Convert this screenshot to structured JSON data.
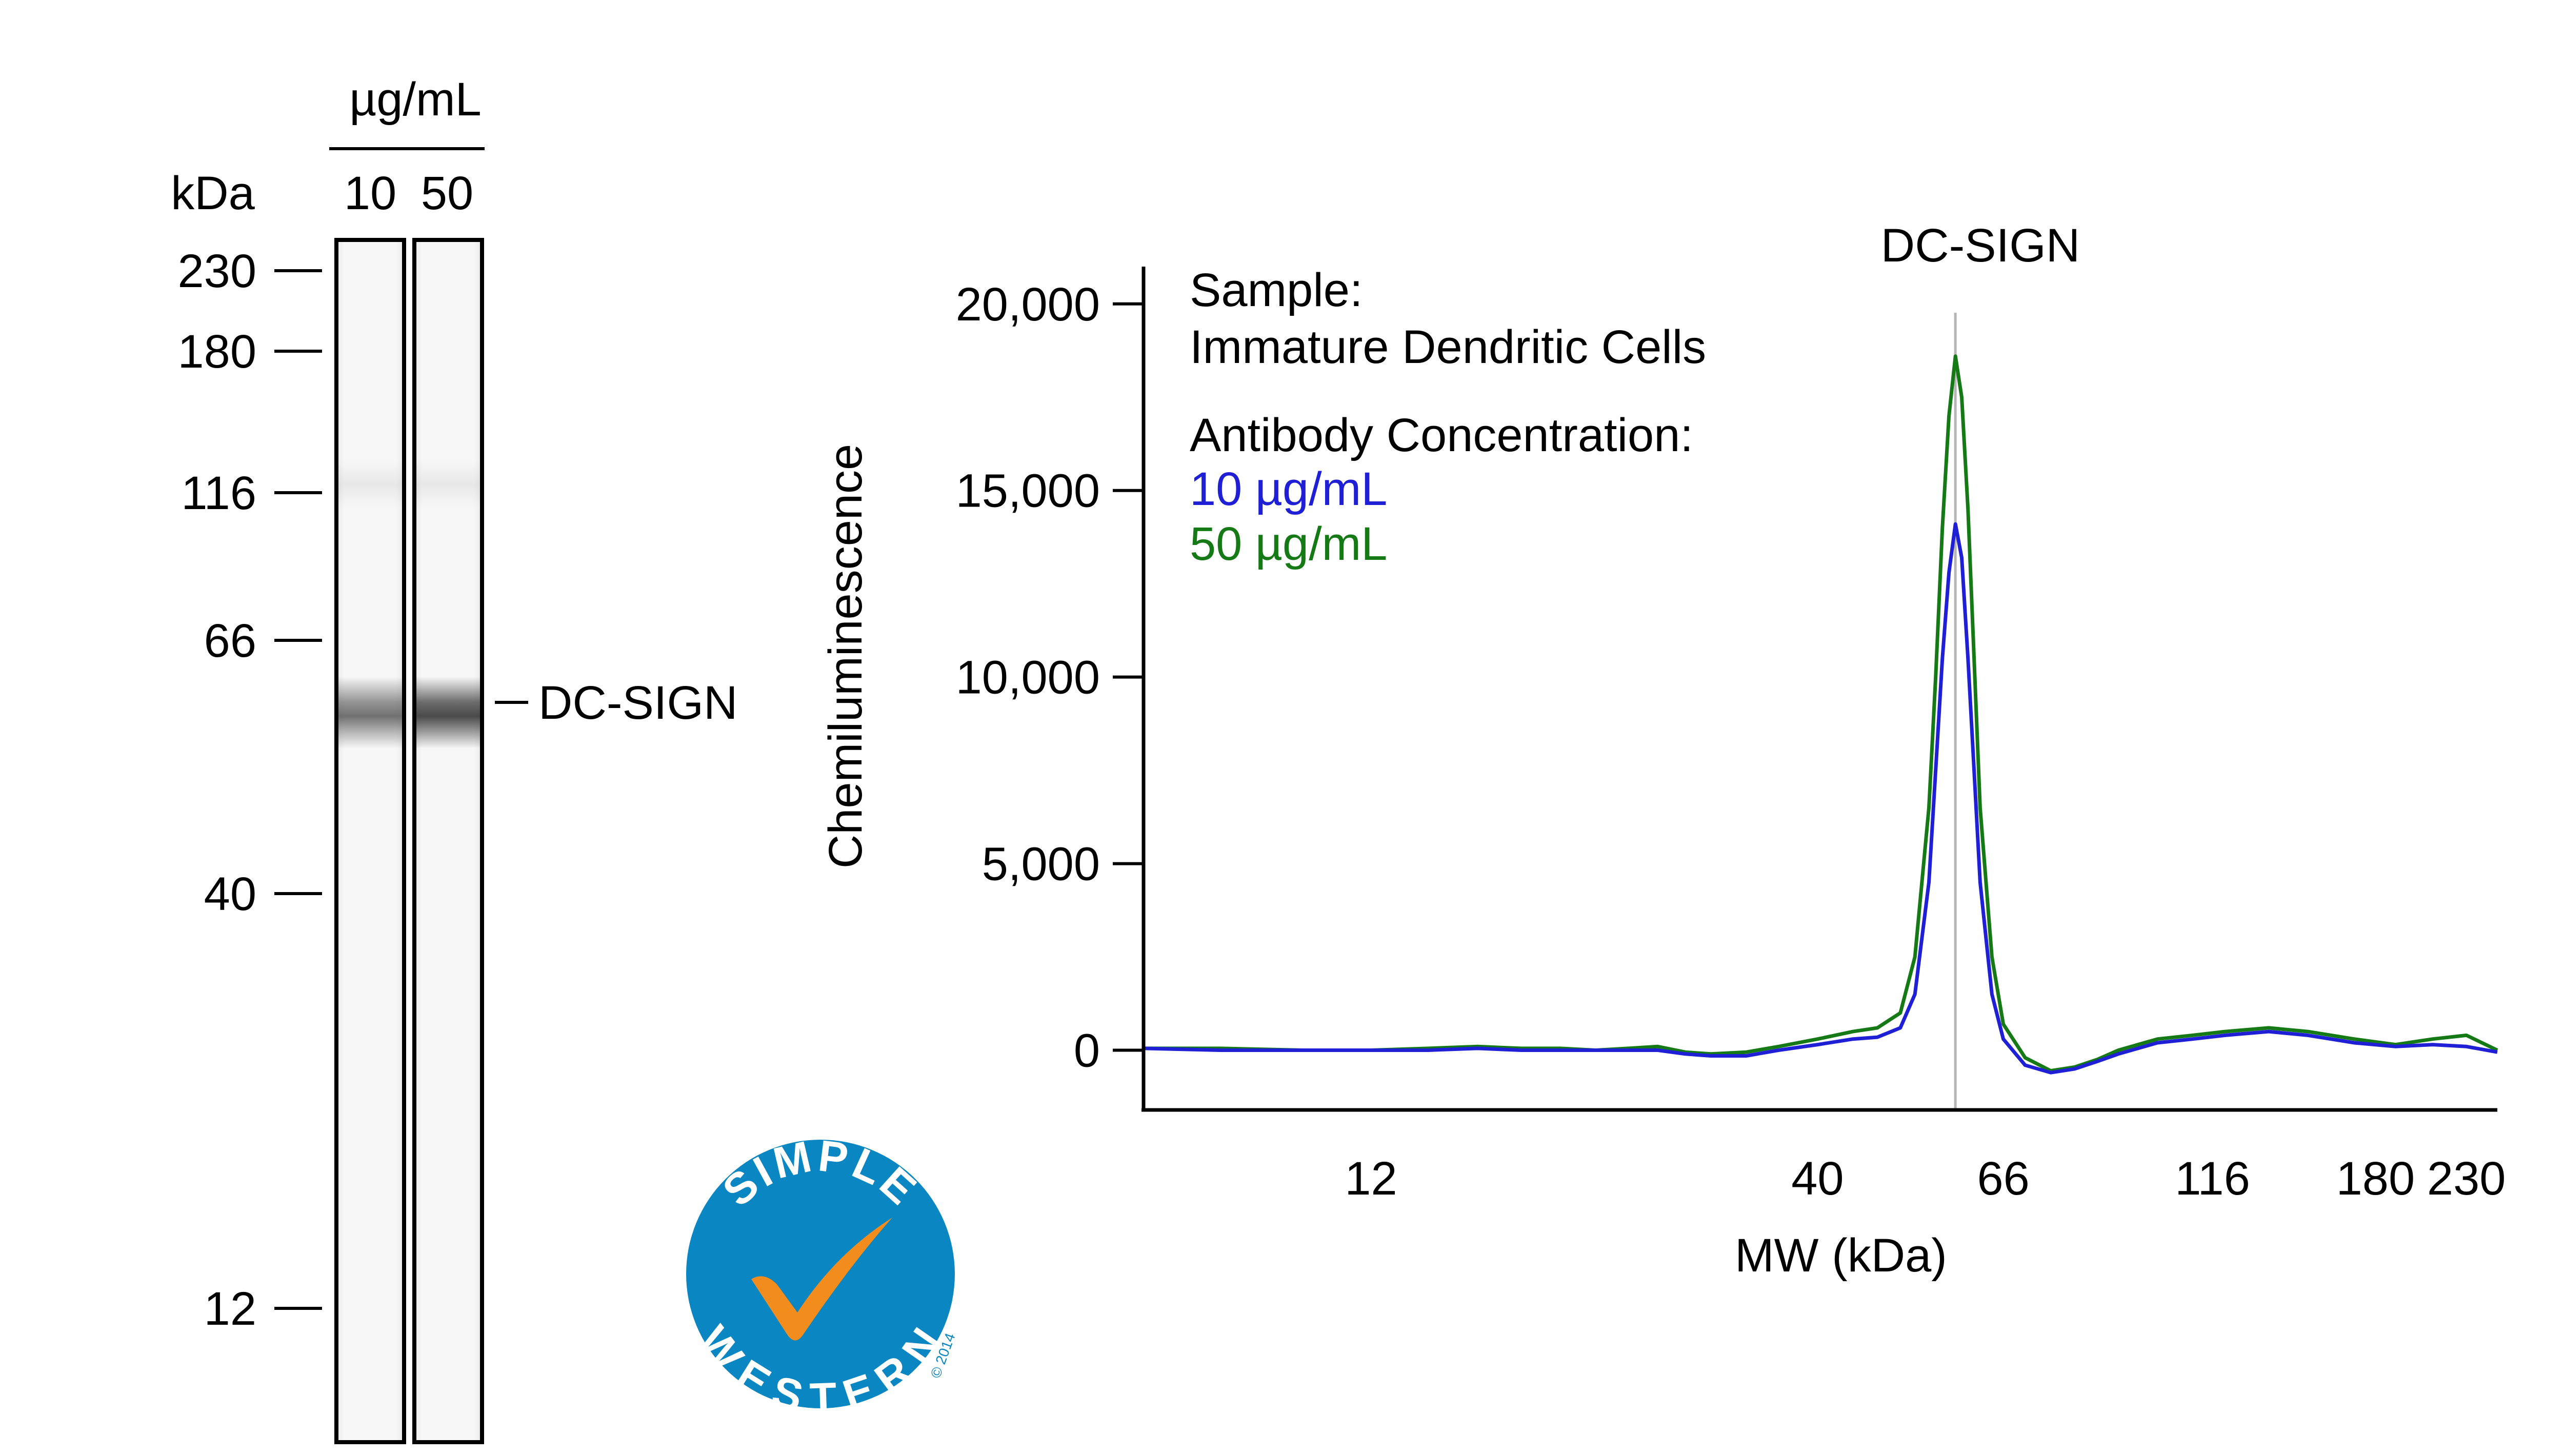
{
  "gel": {
    "unit_label": "µg/mL",
    "axis_label": "kDa",
    "lanes": [
      {
        "label": "10",
        "band_intensity": 0.72
      },
      {
        "label": "50",
        "band_intensity": 0.86
      }
    ],
    "markers": [
      "230",
      "180",
      "116",
      "66",
      "40",
      "12"
    ],
    "band_label": "DC-SIGN"
  },
  "legend": {
    "sample_heading": "Sample:",
    "sample_name": "Immature Dendritic Cells",
    "conc_heading": "Antibody Concentration:",
    "items": [
      {
        "label": "10 µg/mL",
        "color": "#1f1fd6"
      },
      {
        "label": "50 µg/mL",
        "color": "#157a15"
      }
    ]
  },
  "logo": {
    "top_text": "SIMPLE",
    "bottom_text": "WESTERN",
    "copyright": "© 2014"
  },
  "chart_data": {
    "type": "line",
    "title": "DC-SIGN",
    "xlabel": "MW (kDa)",
    "ylabel": "Chemiluminescence",
    "x_scale": "log",
    "xlim": [
      6.5,
      250
    ],
    "ylim": [
      -1600,
      21000
    ],
    "x_ticks": [
      12,
      40,
      66,
      116,
      180,
      230
    ],
    "x_tick_labels": [
      "12",
      "40",
      "66",
      "116",
      "180",
      "230"
    ],
    "y_ticks": [
      0,
      5000,
      10000,
      15000,
      20000
    ],
    "y_tick_labels": [
      "0",
      "5,000",
      "10,000",
      "15,000",
      "20,000"
    ],
    "peak_marker_x": 58,
    "series": [
      {
        "name": "10 µg/mL",
        "color": "#1f1fd6",
        "x": [
          6.5,
          8,
          10,
          12,
          14,
          16,
          18,
          20,
          22,
          24,
          26,
          28,
          30,
          33,
          36,
          40,
          44,
          47,
          50,
          52,
          54,
          55,
          56,
          57,
          58,
          59,
          60,
          61,
          62,
          64,
          66,
          70,
          75,
          80,
          85,
          90,
          100,
          110,
          120,
          135,
          150,
          170,
          190,
          210,
          230,
          250
        ],
        "y": [
          50,
          0,
          0,
          0,
          0,
          50,
          0,
          0,
          0,
          0,
          0,
          -100,
          -150,
          -150,
          0,
          150,
          300,
          350,
          600,
          1500,
          4500,
          7500,
          10500,
          12800,
          14100,
          13200,
          10500,
          7500,
          4500,
          1500,
          300,
          -400,
          -600,
          -500,
          -300,
          -100,
          200,
          300,
          400,
          500,
          400,
          200,
          100,
          150,
          100,
          -50
        ]
      },
      {
        "name": "50 µg/mL",
        "color": "#157a15",
        "x": [
          6.5,
          8,
          10,
          12,
          14,
          16,
          18,
          20,
          22,
          24,
          26,
          28,
          30,
          33,
          36,
          40,
          44,
          47,
          50,
          52,
          54,
          55,
          56,
          57,
          58,
          59,
          60,
          61,
          62,
          64,
          66,
          70,
          75,
          80,
          85,
          90,
          100,
          110,
          120,
          135,
          150,
          170,
          190,
          210,
          230,
          250
        ],
        "y": [
          50,
          50,
          0,
          0,
          50,
          100,
          50,
          50,
          0,
          50,
          100,
          -50,
          -100,
          -50,
          100,
          300,
          500,
          600,
          1000,
          2500,
          6500,
          10000,
          14000,
          17000,
          18600,
          17500,
          14500,
          10500,
          6500,
          2500,
          700,
          -200,
          -550,
          -450,
          -250,
          0,
          300,
          400,
          500,
          600,
          500,
          300,
          150,
          300,
          400,
          0
        ]
      }
    ]
  }
}
